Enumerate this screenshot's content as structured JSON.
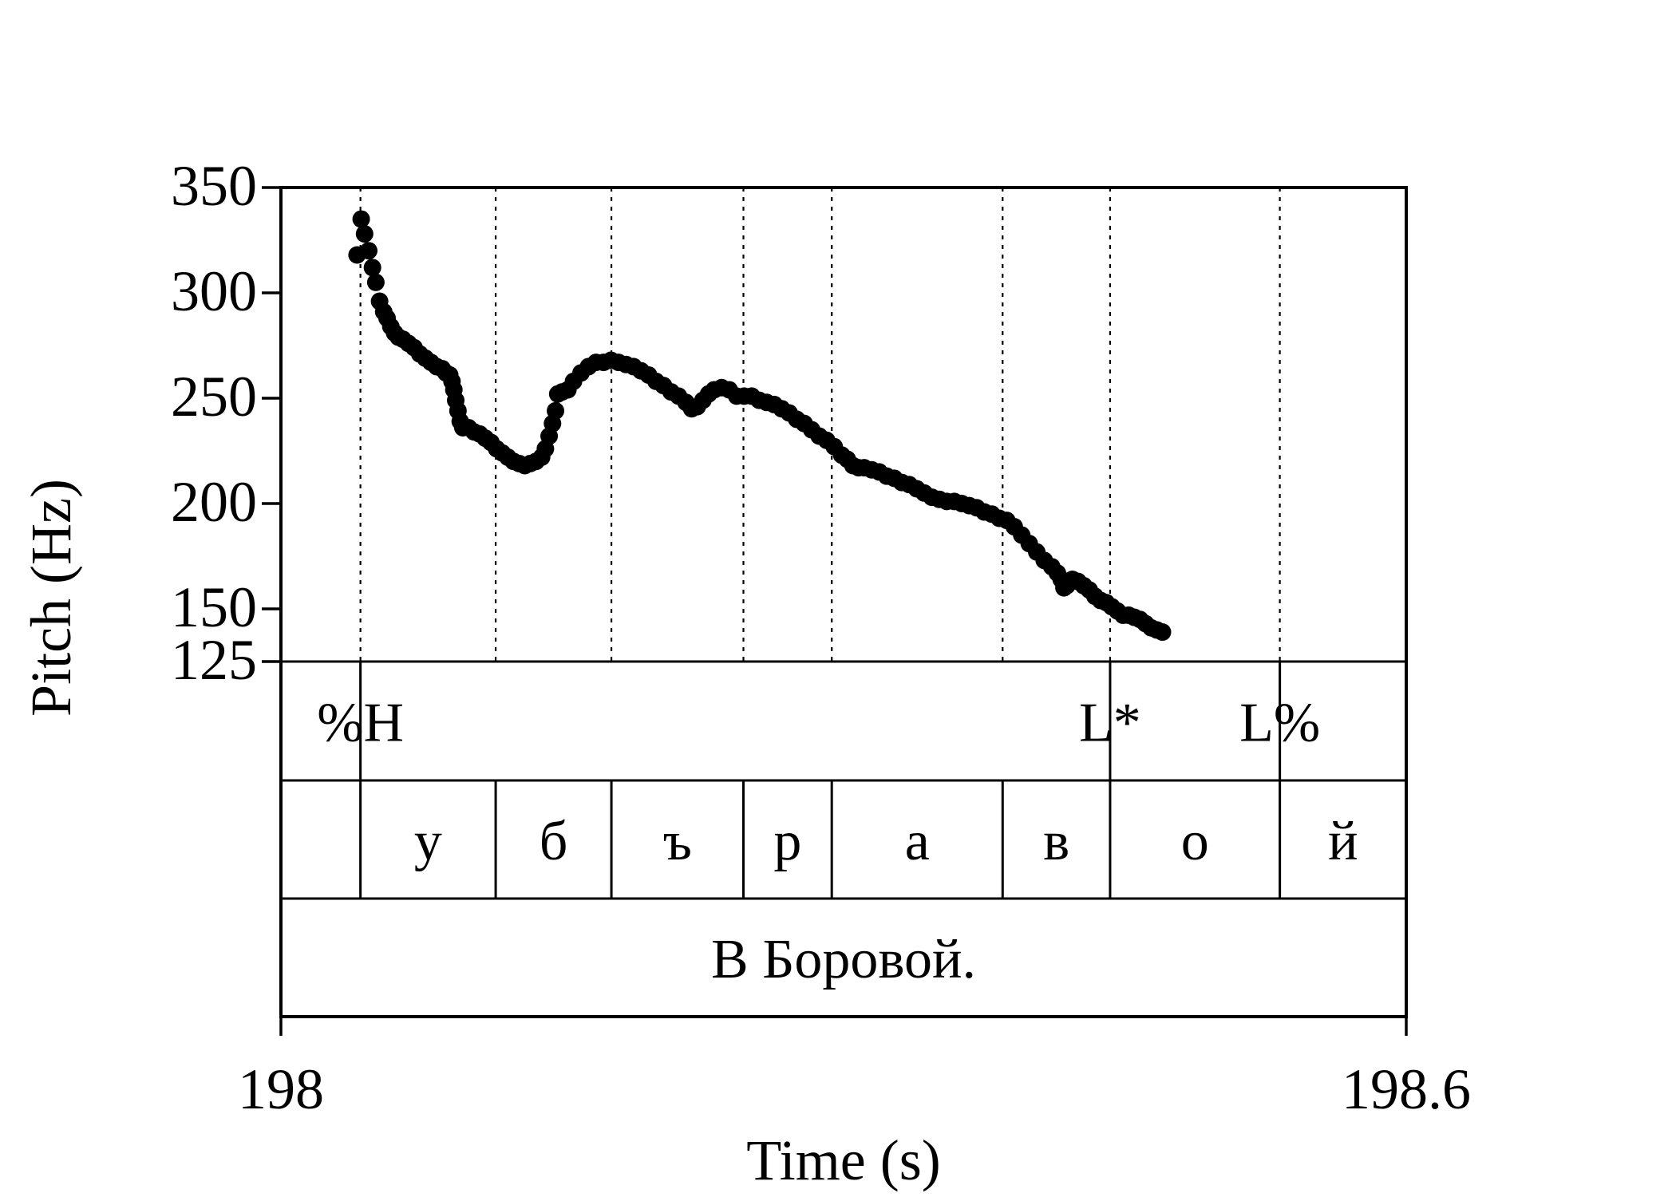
{
  "chart_data": {
    "type": "scatter",
    "xlabel": "Time (s)",
    "ylabel": "Pitch (Hz)",
    "xlim": [
      198,
      198.6
    ],
    "ylim": [
      125,
      350
    ],
    "x_ticks": [
      198,
      198.6
    ],
    "y_ticks": [
      125,
      150,
      200,
      250,
      300,
      350
    ],
    "grid": false,
    "boundaries": [
      198.0424,
      198.1145,
      198.1762,
      198.2466,
      198.2937,
      198.3848,
      198.4421,
      198.5326
    ],
    "pitch_points": [
      [
        198.0406,
        318
      ],
      [
        198.0428,
        335
      ],
      [
        198.0446,
        328
      ],
      [
        198.0468,
        320
      ],
      [
        198.0488,
        312
      ],
      [
        198.0506,
        305
      ],
      [
        198.0526,
        296
      ],
      [
        198.0548,
        291
      ],
      [
        198.0566,
        288
      ],
      [
        198.0586,
        284
      ],
      [
        198.0606,
        281
      ],
      [
        198.0626,
        279
      ],
      [
        198.065,
        278
      ],
      [
        198.068,
        276
      ],
      [
        198.071,
        274
      ],
      [
        198.074,
        271
      ],
      [
        198.077,
        269
      ],
      [
        198.08,
        267
      ],
      [
        198.083,
        265
      ],
      [
        198.086,
        264
      ],
      [
        198.088,
        262
      ],
      [
        198.09,
        261
      ],
      [
        198.0912,
        258
      ],
      [
        198.0922,
        254
      ],
      [
        198.0932,
        249
      ],
      [
        198.0944,
        244
      ],
      [
        198.0956,
        239
      ],
      [
        198.097,
        236
      ],
      [
        198.1,
        236
      ],
      [
        198.103,
        234
      ],
      [
        198.106,
        233
      ],
      [
        198.109,
        231
      ],
      [
        198.112,
        229
      ],
      [
        198.115,
        226
      ],
      [
        198.118,
        224
      ],
      [
        198.121,
        222
      ],
      [
        198.124,
        220
      ],
      [
        198.127,
        219
      ],
      [
        198.13,
        218
      ],
      [
        198.133,
        219
      ],
      [
        198.136,
        220
      ],
      [
        198.139,
        222
      ],
      [
        198.141,
        226
      ],
      [
        198.143,
        232
      ],
      [
        198.1448,
        238
      ],
      [
        198.1464,
        244
      ],
      [
        198.1476,
        252
      ],
      [
        198.15,
        253
      ],
      [
        198.153,
        254
      ],
      [
        198.156,
        258
      ],
      [
        198.16,
        262
      ],
      [
        198.164,
        265
      ],
      [
        198.168,
        267
      ],
      [
        198.172,
        267
      ],
      [
        198.176,
        268
      ],
      [
        198.18,
        267
      ],
      [
        198.184,
        266
      ],
      [
        198.188,
        265
      ],
      [
        198.192,
        263
      ],
      [
        198.196,
        261
      ],
      [
        198.2,
        258
      ],
      [
        198.204,
        256
      ],
      [
        198.208,
        253
      ],
      [
        198.212,
        251
      ],
      [
        198.216,
        248
      ],
      [
        198.219,
        245
      ],
      [
        198.222,
        246
      ],
      [
        198.225,
        249
      ],
      [
        198.228,
        252
      ],
      [
        198.231,
        254
      ],
      [
        198.235,
        255
      ],
      [
        198.239,
        254
      ],
      [
        198.243,
        251
      ],
      [
        198.247,
        251
      ],
      [
        198.251,
        251
      ],
      [
        198.255,
        249
      ],
      [
        198.259,
        248
      ],
      [
        198.263,
        247
      ],
      [
        198.267,
        245
      ],
      [
        198.271,
        243
      ],
      [
        198.275,
        240
      ],
      [
        198.279,
        238
      ],
      [
        198.283,
        235
      ],
      [
        198.287,
        232
      ],
      [
        198.291,
        230
      ],
      [
        198.295,
        227
      ],
      [
        198.299,
        223
      ],
      [
        198.302,
        221
      ],
      [
        198.305,
        218
      ],
      [
        198.308,
        217
      ],
      [
        198.311,
        217
      ],
      [
        198.315,
        216
      ],
      [
        198.319,
        215
      ],
      [
        198.323,
        213
      ],
      [
        198.327,
        212
      ],
      [
        198.331,
        210
      ],
      [
        198.335,
        209
      ],
      [
        198.339,
        207
      ],
      [
        198.343,
        205
      ],
      [
        198.347,
        203
      ],
      [
        198.351,
        202
      ],
      [
        198.355,
        201
      ],
      [
        198.359,
        201
      ],
      [
        198.363,
        200
      ],
      [
        198.367,
        199
      ],
      [
        198.371,
        198
      ],
      [
        198.375,
        196
      ],
      [
        198.379,
        195
      ],
      [
        198.383,
        193
      ],
      [
        198.387,
        192
      ],
      [
        198.391,
        189
      ],
      [
        198.395,
        185
      ],
      [
        198.399,
        181
      ],
      [
        198.403,
        177
      ],
      [
        198.407,
        173
      ],
      [
        198.411,
        170
      ],
      [
        198.414,
        167
      ],
      [
        198.416,
        164
      ],
      [
        198.4175,
        160
      ],
      [
        198.419,
        161
      ],
      [
        198.4205,
        163
      ],
      [
        198.422,
        164
      ],
      [
        198.425,
        163
      ],
      [
        198.428,
        161
      ],
      [
        198.431,
        159
      ],
      [
        198.434,
        156
      ],
      [
        198.437,
        154
      ],
      [
        198.44,
        153
      ],
      [
        198.443,
        151
      ],
      [
        198.446,
        149
      ],
      [
        198.449,
        147
      ],
      [
        198.452,
        147
      ],
      [
        198.455,
        146
      ],
      [
        198.458,
        145
      ],
      [
        198.461,
        143
      ],
      [
        198.464,
        141
      ],
      [
        198.467,
        140
      ],
      [
        198.47,
        139
      ]
    ],
    "tiers": [
      {
        "name": "tones",
        "labels": [
          {
            "text": "%H",
            "x": 198.0424
          },
          {
            "text": "L*",
            "x": 198.4421
          },
          {
            "text": "L%",
            "x": 198.5326
          }
        ]
      },
      {
        "name": "phones",
        "intervals": [
          {
            "text": "",
            "start": 198.0,
            "end": 198.0424
          },
          {
            "text": "у",
            "start": 198.0424,
            "end": 198.1145
          },
          {
            "text": "б",
            "start": 198.1145,
            "end": 198.1762
          },
          {
            "text": "ъ",
            "start": 198.1762,
            "end": 198.2466
          },
          {
            "text": "р",
            "start": 198.2466,
            "end": 198.2937
          },
          {
            "text": "а",
            "start": 198.2937,
            "end": 198.3848
          },
          {
            "text": "в",
            "start": 198.3848,
            "end": 198.4421
          },
          {
            "text": "о",
            "start": 198.4421,
            "end": 198.5326
          },
          {
            "text": "й",
            "start": 198.5326,
            "end": 198.6
          }
        ]
      },
      {
        "name": "utterance",
        "intervals": [
          {
            "text": "В Боровой.",
            "start": 198.0,
            "end": 198.6
          }
        ]
      }
    ]
  }
}
